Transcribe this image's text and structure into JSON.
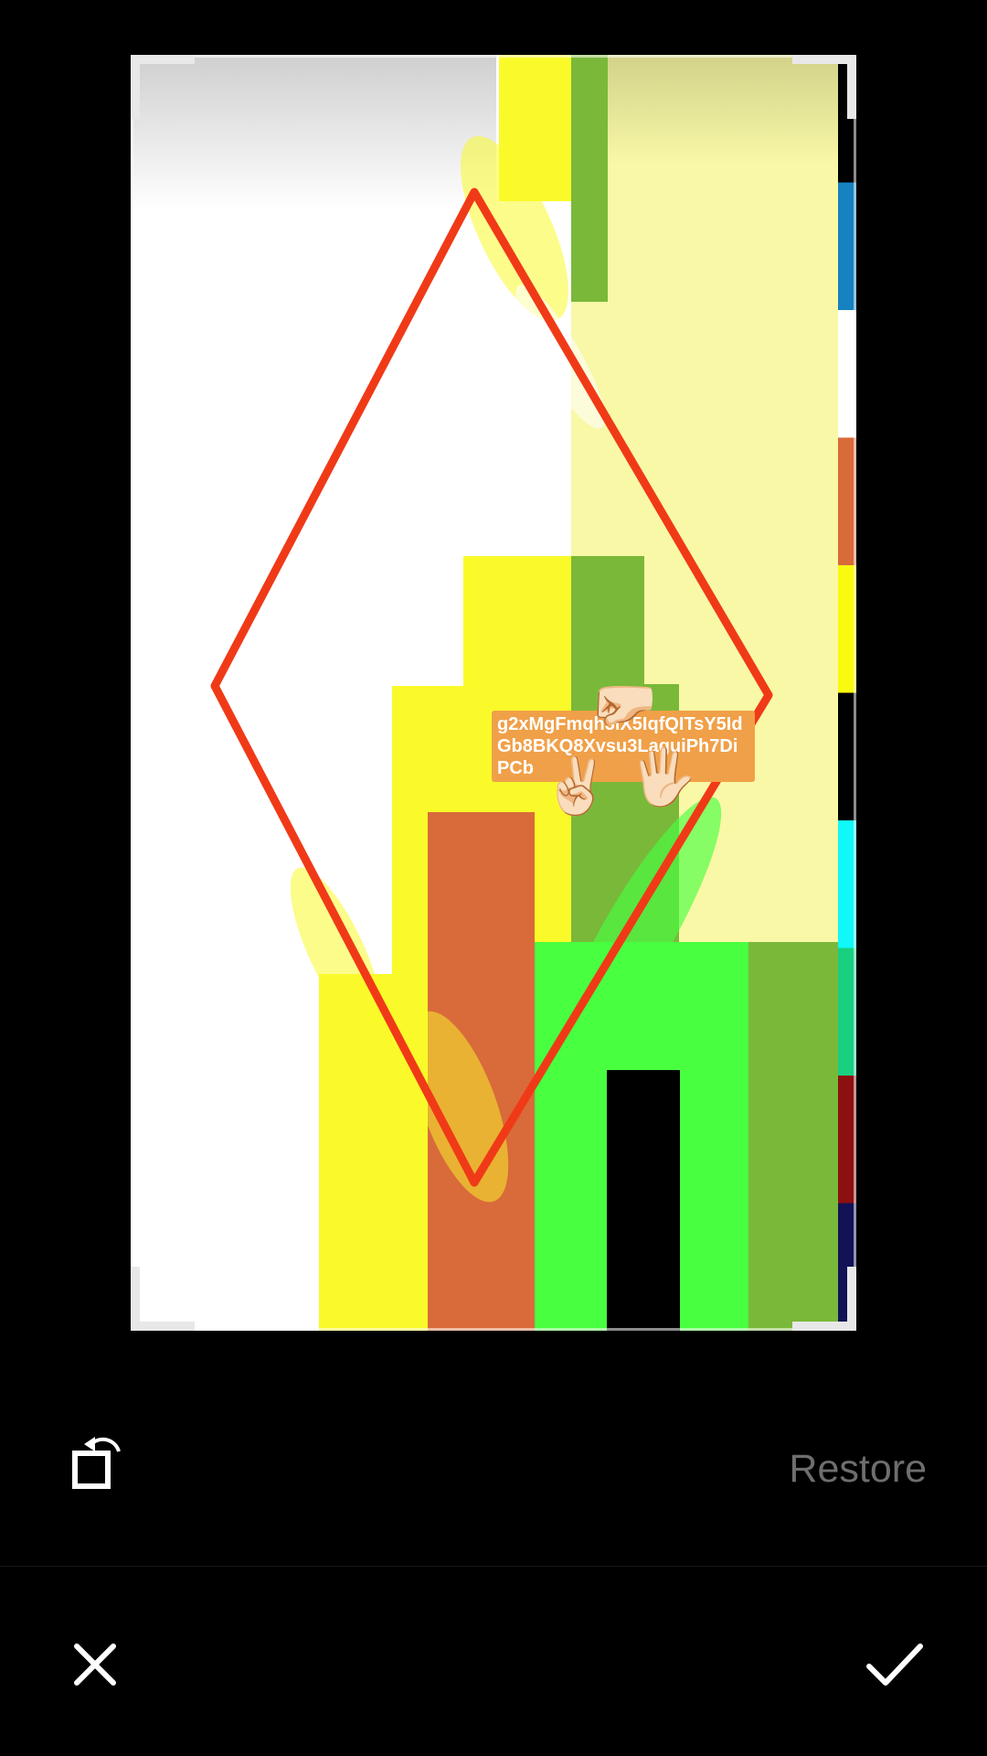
{
  "image": {
    "sticker_text": "g2xMgFmqh3lX5IqfQITsY5IdGb8BKQ8Xvsu3LaguiPh7DiPCb",
    "stickers": [
      {
        "name": "fist-emoji",
        "glyph": "🤛🏻"
      },
      {
        "name": "peace-emoji",
        "glyph": "✌🏻"
      },
      {
        "name": "open-hand-emoji",
        "glyph": "🖐🏻"
      }
    ],
    "colors": {
      "stroke": "#f03a17",
      "yellow": "#fafa2a",
      "pale_yellow": "#f8f8a6",
      "olive_green": "#7ab83a",
      "bright_green": "#48ff40",
      "orange": "#d96a3a",
      "sticker_bg": "#f0a048"
    },
    "palette_strip": [
      "#000000",
      "#1682c0",
      "#ffffff",
      "#d96a3a",
      "#fafa10",
      "#000000",
      "#10f8f8",
      "#18d080",
      "#8c1010",
      "#121256"
    ]
  },
  "toolbar": {
    "rotate_icon": "rotate-icon",
    "restore_label": "Restore"
  },
  "bottom_bar": {
    "cancel_icon": "close-icon",
    "confirm_icon": "check-icon"
  }
}
